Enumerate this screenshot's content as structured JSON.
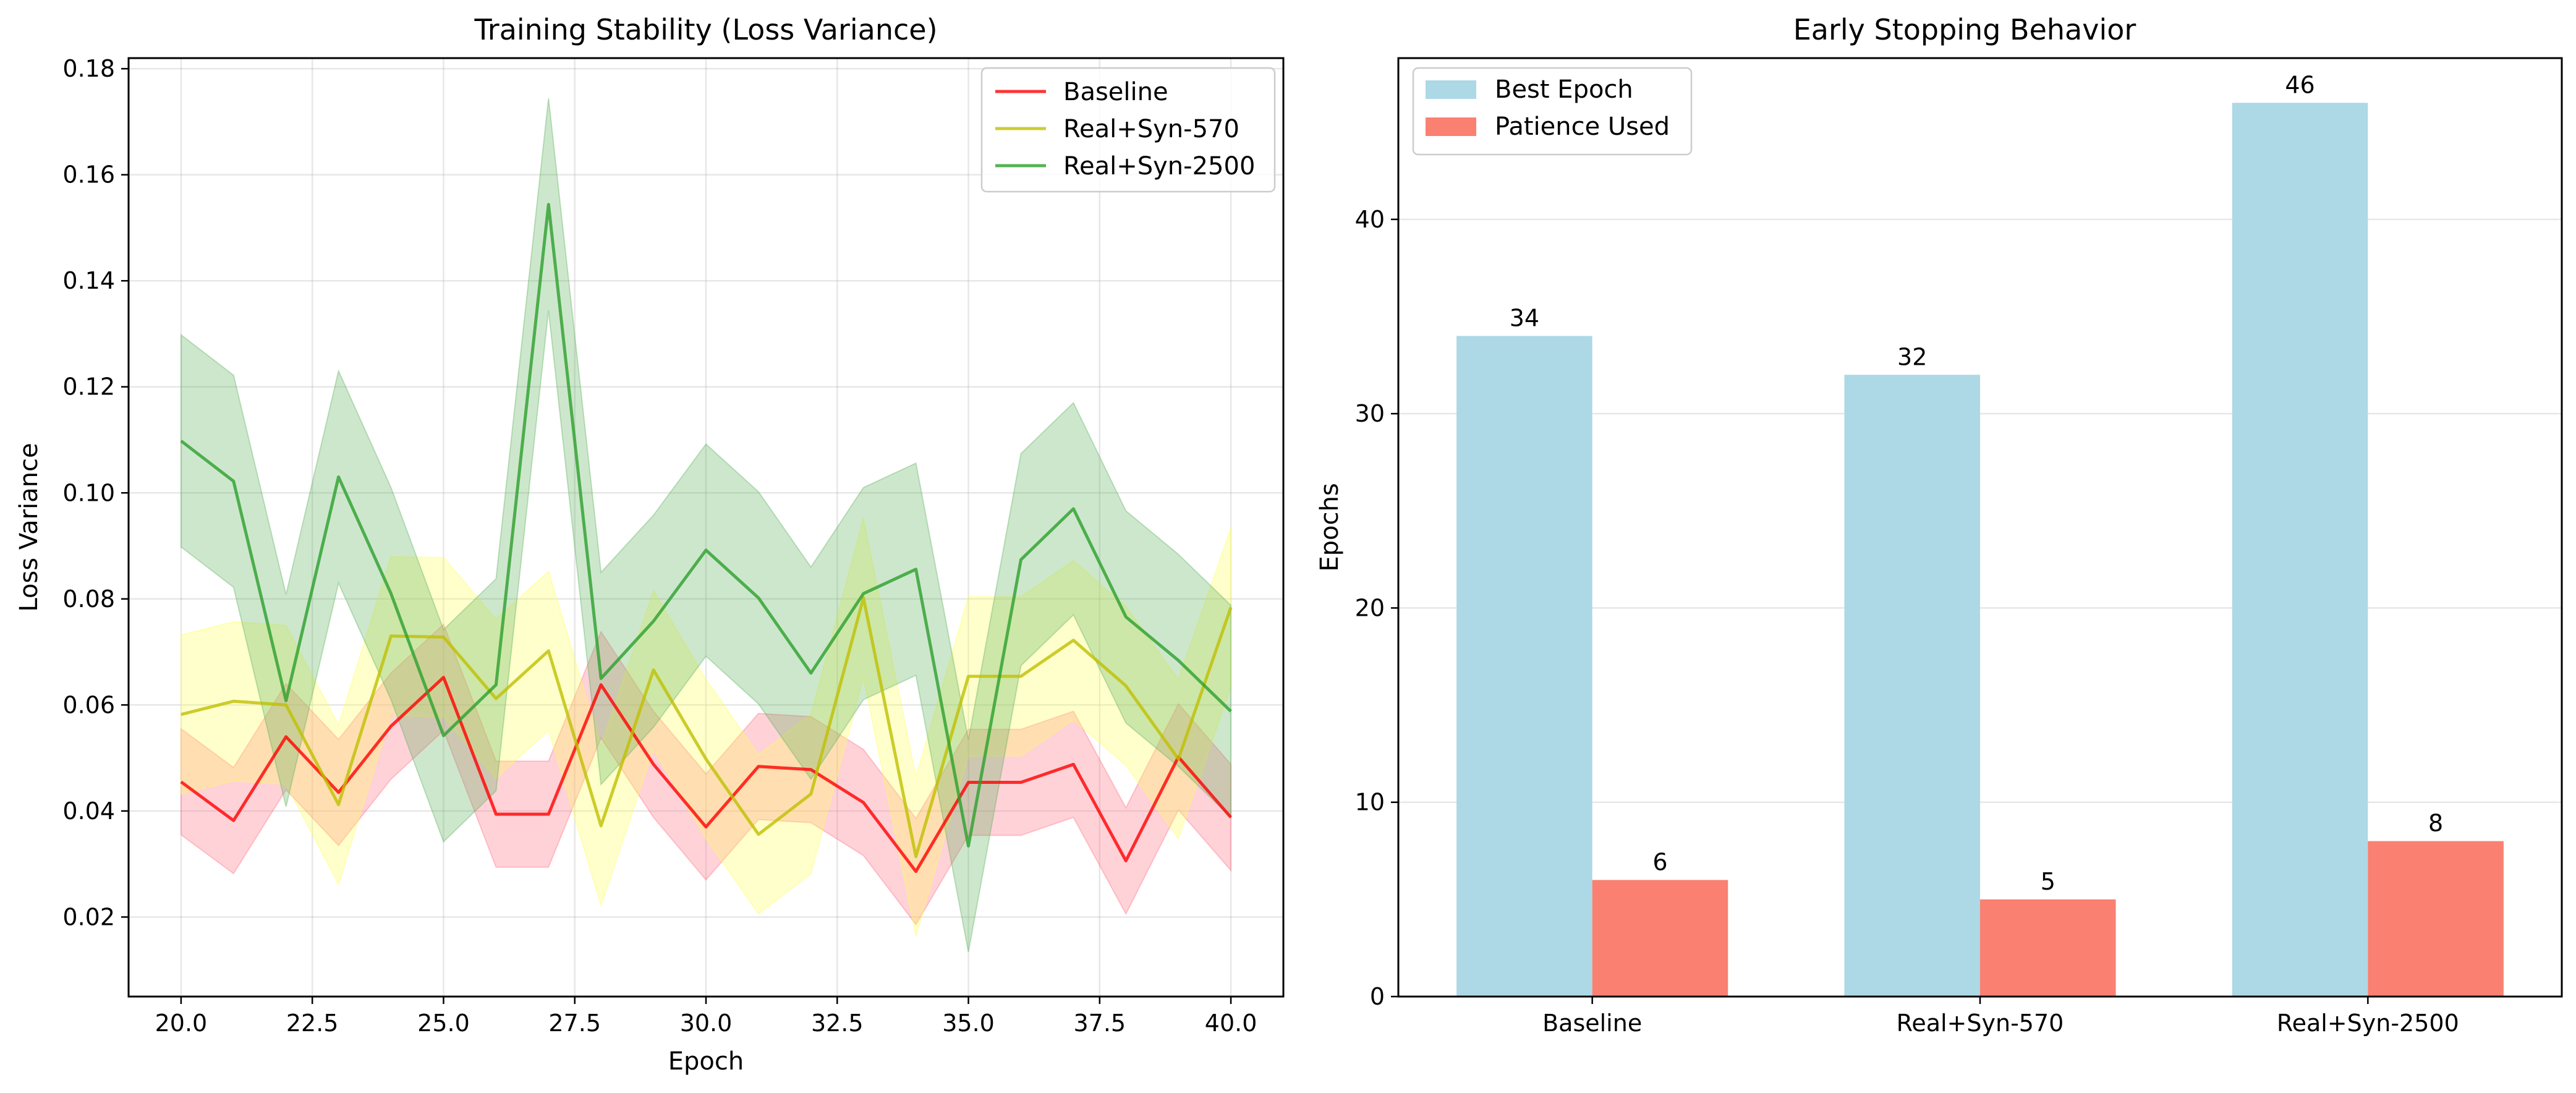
{
  "chart_data": [
    {
      "type": "line",
      "title": "Training Stability (Loss Variance)",
      "xlabel": "Epoch",
      "ylabel": "Loss Variance",
      "xlim": [
        19.0,
        41.0
      ],
      "ylim": [
        0.005,
        0.182
      ],
      "xticks": [
        20.0,
        22.5,
        25.0,
        27.5,
        30.0,
        32.5,
        35.0,
        37.5,
        40.0
      ],
      "xtick_labels": [
        "20.0",
        "22.5",
        "25.0",
        "27.5",
        "30.0",
        "32.5",
        "35.0",
        "37.5",
        "40.0"
      ],
      "yticks": [
        0.02,
        0.04,
        0.06,
        0.08,
        0.1,
        0.12,
        0.14,
        0.16,
        0.18
      ],
      "ytick_labels": [
        "0.02",
        "0.04",
        "0.06",
        "0.08",
        "0.10",
        "0.12",
        "0.14",
        "0.16",
        "0.18"
      ],
      "grid": true,
      "legend_position": "top-right",
      "x": [
        20,
        21,
        22,
        23,
        24,
        25,
        26,
        27,
        28,
        29,
        30,
        31,
        32,
        33,
        34,
        35,
        36,
        37,
        38,
        39,
        40
      ],
      "series": [
        {
          "name": "Baseline",
          "color": "#ff0000",
          "band_color": "#ff6b7d",
          "values": [
            0.0455,
            0.0382,
            0.054,
            0.0435,
            0.056,
            0.0652,
            0.0394,
            0.0394,
            0.0638,
            0.0488,
            0.037,
            0.0484,
            0.0478,
            0.0416,
            0.0286,
            0.0454,
            0.0454,
            0.0488,
            0.0306,
            0.0502,
            0.0388
          ],
          "lower": [
            0.0355,
            0.0282,
            0.044,
            0.0335,
            0.046,
            0.0552,
            0.0294,
            0.0294,
            0.0538,
            0.0388,
            0.027,
            0.0384,
            0.0378,
            0.0316,
            0.0186,
            0.0354,
            0.0354,
            0.0388,
            0.0206,
            0.0402,
            0.0288
          ],
          "upper": [
            0.0555,
            0.0482,
            0.064,
            0.0535,
            0.066,
            0.0752,
            0.0494,
            0.0494,
            0.0738,
            0.0588,
            0.047,
            0.0584,
            0.0578,
            0.0516,
            0.0386,
            0.0554,
            0.0554,
            0.0588,
            0.0406,
            0.0602,
            0.0488
          ]
        },
        {
          "name": "Real+Syn-570",
          "color": "#bfbf00",
          "band_color": "#ffff55",
          "values": [
            0.0582,
            0.0607,
            0.06,
            0.0412,
            0.073,
            0.0728,
            0.0612,
            0.0702,
            0.0372,
            0.0666,
            0.0498,
            0.0356,
            0.0432,
            0.0802,
            0.0314,
            0.0654,
            0.0654,
            0.0722,
            0.0636,
            0.0498,
            0.0784
          ],
          "lower": [
            0.0432,
            0.0457,
            0.045,
            0.0262,
            0.058,
            0.0578,
            0.0462,
            0.0552,
            0.0222,
            0.0516,
            0.0348,
            0.0206,
            0.0282,
            0.0652,
            0.0164,
            0.0504,
            0.0504,
            0.0572,
            0.0486,
            0.0348,
            0.0634
          ],
          "upper": [
            0.0732,
            0.0757,
            0.075,
            0.0562,
            0.088,
            0.0878,
            0.0762,
            0.0852,
            0.0522,
            0.0816,
            0.0648,
            0.0506,
            0.0582,
            0.0952,
            0.0464,
            0.0804,
            0.0804,
            0.0872,
            0.0786,
            0.0648,
            0.0934
          ]
        },
        {
          "name": "Real+Syn-2500",
          "color": "#2ca02c",
          "band_color": "#5aaf5a",
          "values": [
            0.1098,
            0.1022,
            0.0608,
            0.103,
            0.081,
            0.0542,
            0.0638,
            0.1544,
            0.065,
            0.0758,
            0.0892,
            0.0802,
            0.066,
            0.081,
            0.0856,
            0.0334,
            0.0874,
            0.097,
            0.0766,
            0.0684,
            0.0588
          ],
          "lower": [
            0.0898,
            0.0822,
            0.0408,
            0.083,
            0.061,
            0.0342,
            0.0438,
            0.1344,
            0.045,
            0.0558,
            0.0692,
            0.0602,
            0.046,
            0.061,
            0.0656,
            0.0134,
            0.0674,
            0.077,
            0.0566,
            0.0484,
            0.0388
          ],
          "upper": [
            0.1298,
            0.1222,
            0.0808,
            0.123,
            0.101,
            0.0742,
            0.0838,
            0.1744,
            0.085,
            0.0958,
            0.1092,
            0.1002,
            0.086,
            0.101,
            0.1056,
            0.0534,
            0.1074,
            0.117,
            0.0966,
            0.0884,
            0.0788
          ]
        }
      ]
    },
    {
      "type": "bar",
      "title": "Early Stopping Behavior",
      "xlabel": "",
      "ylabel": "Epochs",
      "ylim": [
        0,
        48.3
      ],
      "yticks": [
        0,
        10,
        20,
        30,
        40
      ],
      "ytick_labels": [
        "0",
        "10",
        "20",
        "30",
        "40"
      ],
      "grid": true,
      "legend_position": "top-left",
      "categories": [
        "Baseline",
        "Real+Syn-570",
        "Real+Syn-2500"
      ],
      "series": [
        {
          "name": "Best Epoch",
          "color": "#add8e6",
          "values": [
            34,
            32,
            46
          ],
          "value_labels": [
            "34",
            "32",
            "46"
          ]
        },
        {
          "name": "Patience Used",
          "color": "#fa8072",
          "values": [
            6,
            5,
            8
          ],
          "value_labels": [
            "6",
            "5",
            "8"
          ]
        }
      ]
    }
  ]
}
